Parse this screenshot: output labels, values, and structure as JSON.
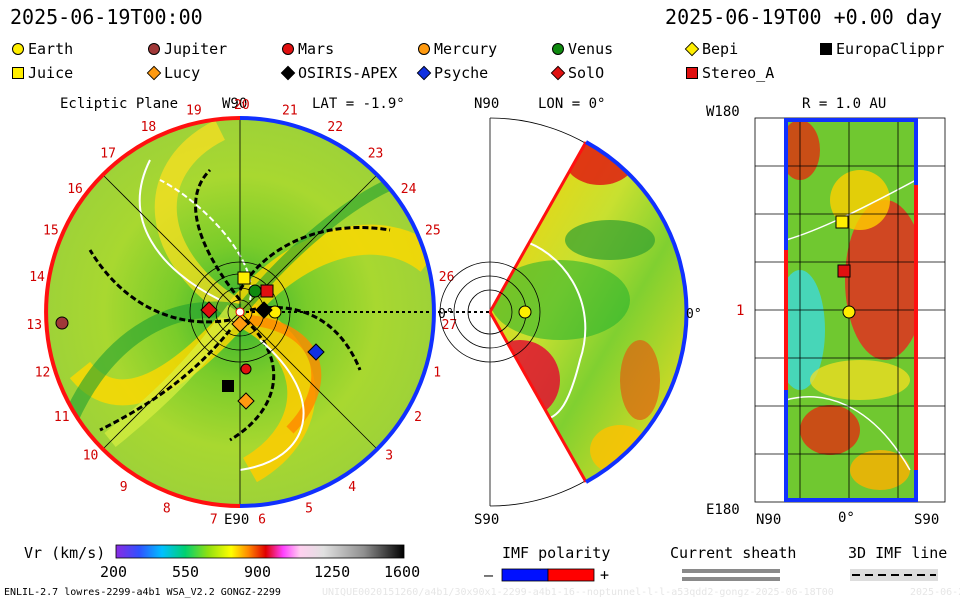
{
  "header": {
    "timestamp_left": "2025-06-19T00:00",
    "timestamp_right": "2025-06-19T00 +0.00 day"
  },
  "legend": [
    {
      "name": "Earth",
      "shape": "circle",
      "color": "#ffee00"
    },
    {
      "name": "Jupiter",
      "shape": "circle",
      "color": "#a03838"
    },
    {
      "name": "Mars",
      "shape": "circle",
      "color": "#e01010"
    },
    {
      "name": "Mercury",
      "shape": "circle",
      "color": "#ff9a10"
    },
    {
      "name": "Venus",
      "shape": "circle",
      "color": "#108a10"
    },
    {
      "name": "Bepi",
      "shape": "diamond",
      "color": "#ffee00"
    },
    {
      "name": "EuropaClippr",
      "shape": "square",
      "color": "#000000"
    },
    {
      "name": "Juice",
      "shape": "square",
      "color": "#ffee00"
    },
    {
      "name": "Lucy",
      "shape": "diamond",
      "color": "#ff9a10"
    },
    {
      "name": "OSIRIS-APEX",
      "shape": "diamond",
      "color": "#000000"
    },
    {
      "name": "Psyche",
      "shape": "diamond",
      "color": "#1030e0"
    },
    {
      "name": "SolO",
      "shape": "diamond",
      "color": "#e01010"
    },
    {
      "name": "Stereo_A",
      "shape": "square",
      "color": "#e01010"
    }
  ],
  "ecliptic": {
    "title": "Ecliptic Plane",
    "top_label": "W90",
    "lat_label": "LAT = -1.9°",
    "bottom_label": "E90",
    "right_label": "0°",
    "carrington_numbers": [
      "20",
      "21",
      "22",
      "23",
      "24",
      "25",
      "26",
      "27",
      "1",
      "2",
      "3",
      "4",
      "5",
      "6",
      "7",
      "8",
      "9",
      "10",
      "11",
      "12",
      "13",
      "14",
      "15",
      "16",
      "17",
      "18",
      "19"
    ]
  },
  "meridional": {
    "top_label": "N90",
    "lon_label": "LON = 0°",
    "bottom_label": "S90",
    "right_label": "0°"
  },
  "sphere": {
    "title": "R = 1.0 AU",
    "top_left": "W180",
    "bottom_left": "E180",
    "mid_left": "1",
    "bottom_labels": [
      "N90",
      "0°",
      "S90"
    ]
  },
  "colorbar": {
    "label": "Vr (km/s)",
    "ticks": [
      "200",
      "550",
      "900",
      "1250",
      "1600"
    ]
  },
  "imf": {
    "label": "IMF polarity",
    "minus": "–",
    "plus": "+",
    "minus_color": "#0010ff",
    "plus_color": "#ff0000"
  },
  "sheath": {
    "label": "Current sheath"
  },
  "imf3d": {
    "label": "3D IMF line"
  },
  "footer": {
    "model": "ENLIL-2.7 lowres-2299-a4b1 WSA_V2.2 GONGZ-2299",
    "run_id": "UNIQUE0020151260/a4b1/30x90x1-2299-a4b1-16--noptunnel-l-l-a53qdd2-gongz-2025-06-18T00",
    "date_tail": "2025-06-20"
  }
}
